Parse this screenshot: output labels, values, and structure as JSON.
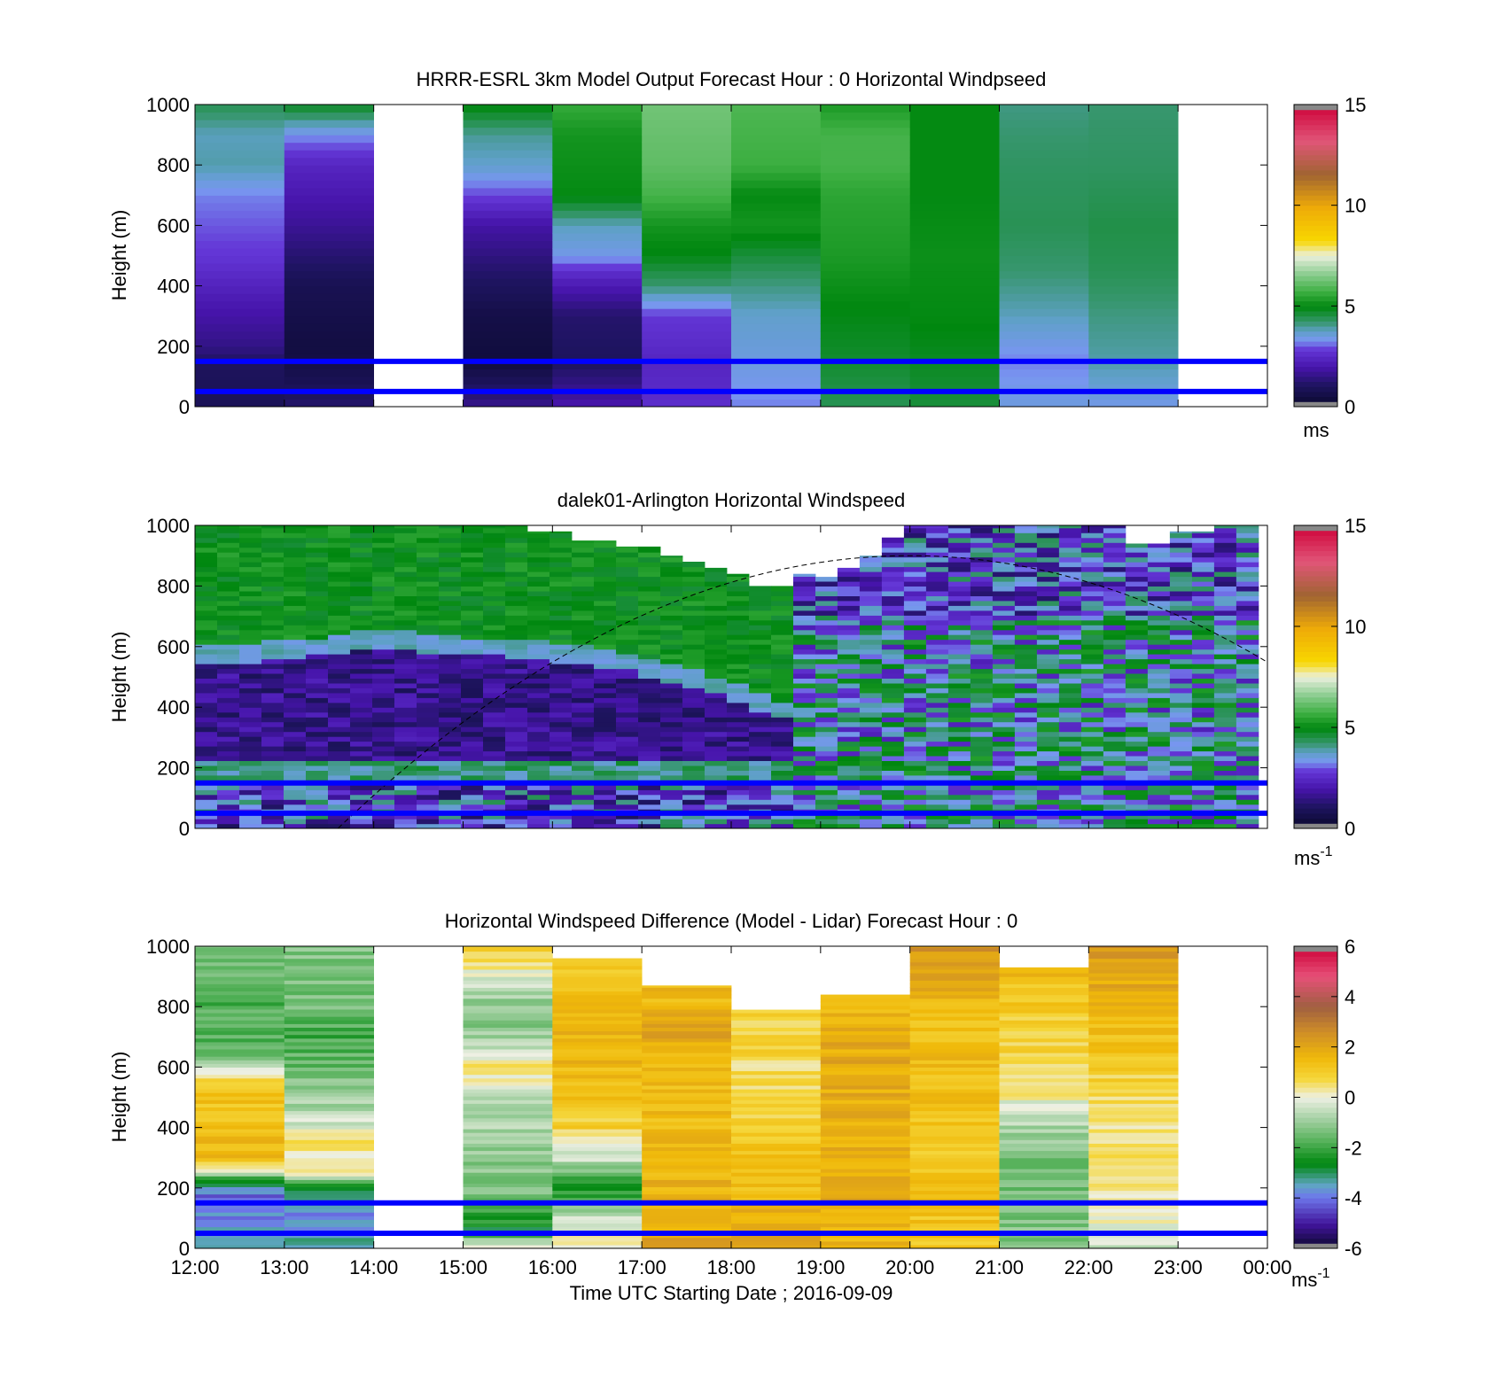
{
  "figure": {
    "xlabel": "Time UTC  Starting Date ; 2016-09-09",
    "xticks": [
      "12:00",
      "13:00",
      "14:00",
      "15:00",
      "16:00",
      "17:00",
      "18:00",
      "19:00",
      "20:00",
      "21:00",
      "22:00",
      "23:00",
      "00:00"
    ]
  },
  "chart_data": [
    {
      "type": "heatmap",
      "title": "HRRR-ESRL 3km Model Output   Forecast Hour : 0 Horizontal Windpseed",
      "ylabel": "Height (m)",
      "xlabel": "",
      "xlim": [
        12,
        24
      ],
      "ylim": [
        0,
        1000
      ],
      "yticks": [
        0,
        200,
        400,
        600,
        800,
        1000
      ],
      "colorbar": {
        "min": 0,
        "max": 15,
        "ticks": [
          0,
          5,
          10,
          15
        ],
        "unit": "ms"
      },
      "reference_lines_m": [
        50,
        150
      ],
      "columns": [
        {
          "start": 12,
          "end": 13,
          "profile": [
            [
              0,
              0.9
            ],
            [
              140,
              1.0
            ],
            [
              200,
              1.5
            ],
            [
              350,
              2.1
            ],
            [
              500,
              2.8
            ],
            [
              700,
              3.2
            ],
            [
              800,
              3.9
            ],
            [
              900,
              3.8
            ],
            [
              1000,
              4.4
            ]
          ]
        },
        {
          "start": 13,
          "end": 14,
          "profile": [
            [
              0,
              1.2
            ],
            [
              140,
              0.6
            ],
            [
              200,
              0.5
            ],
            [
              400,
              0.8
            ],
            [
              600,
              1.7
            ],
            [
              800,
              2.4
            ],
            [
              900,
              3.3
            ],
            [
              1000,
              4.8
            ]
          ]
        },
        {
          "start": 15,
          "end": 16,
          "profile": [
            [
              0,
              1.6
            ],
            [
              150,
              0.4
            ],
            [
              300,
              0.6
            ],
            [
              450,
              1.2
            ],
            [
              600,
              1.9
            ],
            [
              700,
              2.9
            ],
            [
              800,
              3.7
            ],
            [
              900,
              4.0
            ],
            [
              1000,
              5.0
            ]
          ]
        },
        {
          "start": 16,
          "end": 17,
          "profile": [
            [
              0,
              2.0
            ],
            [
              150,
              1.0
            ],
            [
              300,
              1.2
            ],
            [
              430,
              2.4
            ],
            [
              500,
              3.4
            ],
            [
              600,
              3.8
            ],
            [
              700,
              5.0
            ],
            [
              800,
              5.1
            ],
            [
              900,
              5.2
            ],
            [
              1000,
              5.6
            ]
          ]
        },
        {
          "start": 17,
          "end": 18,
          "profile": [
            [
              0,
              2.6
            ],
            [
              150,
              2.4
            ],
            [
              300,
              2.8
            ],
            [
              400,
              4.2
            ],
            [
              500,
              4.9
            ],
            [
              600,
              5.2
            ],
            [
              700,
              5.8
            ],
            [
              800,
              6.1
            ],
            [
              900,
              6.2
            ],
            [
              1000,
              6.3
            ]
          ]
        },
        {
          "start": 18,
          "end": 19,
          "profile": [
            [
              0,
              3.2
            ],
            [
              150,
              3.5
            ],
            [
              300,
              3.7
            ],
            [
              400,
              4.1
            ],
            [
              500,
              4.6
            ],
            [
              600,
              5.2
            ],
            [
              700,
              5.0
            ],
            [
              800,
              5.7
            ],
            [
              1000,
              5.9
            ]
          ]
        },
        {
          "start": 19,
          "end": 20,
          "profile": [
            [
              0,
              4.4
            ],
            [
              150,
              4.7
            ],
            [
              300,
              4.9
            ],
            [
              500,
              5.3
            ],
            [
              700,
              5.5
            ],
            [
              800,
              5.8
            ],
            [
              900,
              5.8
            ],
            [
              1000,
              5.3
            ]
          ]
        },
        {
          "start": 20,
          "end": 21,
          "profile": [
            [
              0,
              4.6
            ],
            [
              150,
              4.8
            ],
            [
              300,
              5.0
            ],
            [
              500,
              5.1
            ],
            [
              700,
              5.0
            ],
            [
              900,
              5.0
            ],
            [
              1000,
              5.0
            ]
          ]
        },
        {
          "start": 21,
          "end": 22,
          "profile": [
            [
              0,
              3.5
            ],
            [
              150,
              3.2
            ],
            [
              300,
              3.8
            ],
            [
              450,
              4.2
            ],
            [
              600,
              4.4
            ],
            [
              800,
              4.3
            ],
            [
              1000,
              4.1
            ]
          ]
        },
        {
          "start": 22,
          "end": 23,
          "profile": [
            [
              0,
              3.4
            ],
            [
              150,
              3.9
            ],
            [
              300,
              4.1
            ],
            [
              450,
              4.4
            ],
            [
              600,
              4.5
            ],
            [
              800,
              4.3
            ],
            [
              1000,
              4.2
            ]
          ]
        }
      ]
    },
    {
      "type": "heatmap",
      "title": "dalek01-Arlington  Horizontal Windspeed",
      "ylabel": "Height (m)",
      "xlabel": "",
      "xlim": [
        12,
        24
      ],
      "ylim": [
        0,
        1000
      ],
      "yticks": [
        0,
        200,
        400,
        600,
        800,
        1000
      ],
      "colorbar": {
        "min": 0,
        "max": 15,
        "ticks": [
          0,
          5,
          10,
          15
        ],
        "unit": "ms-1"
      },
      "reference_lines_m": [
        50,
        150
      ],
      "column_width_h": 0.25,
      "x_start": 12,
      "x_end": 23.9,
      "top_heights_m": [
        1000,
        1000,
        1000,
        1000,
        1000,
        1000,
        1000,
        1000,
        1000,
        1000,
        1000,
        1000,
        1000,
        1000,
        1000,
        980,
        980,
        950,
        950,
        930,
        930,
        900,
        880,
        860,
        840,
        800,
        800,
        840,
        830,
        860,
        900,
        960,
        1000,
        1000,
        1000,
        1000,
        1000,
        1000,
        1000,
        1000,
        1000,
        1000,
        940,
        940,
        980,
        980,
        1000,
        1000
      ],
      "boundary_layer_m": [
        600,
        600,
        610,
        620,
        620,
        630,
        640,
        650,
        650,
        650,
        640,
        640,
        630,
        630,
        620,
        620,
        610,
        600,
        590,
        580,
        560,
        540,
        520,
        500,
        480,
        450,
        420,
        380,
        330,
        290,
        250,
        220,
        200,
        200,
        200,
        200,
        200,
        200,
        200,
        200,
        200,
        200,
        200,
        200,
        200,
        200,
        200,
        200
      ],
      "sunrise_curve": {
        "peak_time": 20,
        "peak_height_m": 900,
        "zero_time": 13.6
      }
    },
    {
      "type": "heatmap",
      "title": "Horizontal Windspeed Difference (Model - Lidar) Forecast Hour : 0",
      "ylabel": "Height (m)",
      "xlabel": "Time UTC  Starting Date ; 2016-09-09",
      "xlim": [
        12,
        24
      ],
      "ylim": [
        0,
        1000
      ],
      "yticks": [
        0,
        200,
        400,
        600,
        800,
        1000
      ],
      "colorbar": {
        "min": -6,
        "max": 6,
        "ticks": [
          -6,
          -4,
          -2,
          0,
          2,
          4,
          6
        ],
        "unit": "ms-1"
      },
      "reference_lines_m": [
        50,
        150
      ],
      "columns": [
        {
          "start": 12,
          "end": 13,
          "top": 1000,
          "profile": [
            [
              0,
              -3.2
            ],
            [
              80,
              -3.8
            ],
            [
              170,
              -4.2
            ],
            [
              230,
              -2.5
            ],
            [
              260,
              0.2
            ],
            [
              300,
              1.6
            ],
            [
              450,
              1.3
            ],
            [
              550,
              1.1
            ],
            [
              600,
              -0.5
            ],
            [
              650,
              -1.6
            ],
            [
              800,
              -1.8
            ],
            [
              1000,
              -1.5
            ]
          ]
        },
        {
          "start": 13,
          "end": 14,
          "top": 1000,
          "profile": [
            [
              0,
              -3.3
            ],
            [
              100,
              -3.9
            ],
            [
              160,
              -2.9
            ],
            [
              200,
              -2.7
            ],
            [
              250,
              0.0
            ],
            [
              350,
              0.6
            ],
            [
              450,
              -0.7
            ],
            [
              600,
              -1.5
            ],
            [
              700,
              -1.9
            ],
            [
              800,
              -1.4
            ],
            [
              1000,
              -1.2
            ]
          ]
        },
        {
          "start": 15,
          "end": 16,
          "top": 1000,
          "profile": [
            [
              0,
              0.8
            ],
            [
              60,
              -2.8
            ],
            [
              180,
              -1.3
            ],
            [
              300,
              -1.2
            ],
            [
              400,
              -0.8
            ],
            [
              500,
              -0.5
            ],
            [
              600,
              0.4
            ],
            [
              700,
              -1.0
            ],
            [
              800,
              -1.2
            ],
            [
              900,
              -0.2
            ],
            [
              1000,
              1.1
            ]
          ]
        },
        {
          "start": 16,
          "end": 17,
          "top": 960,
          "profile": [
            [
              0,
              0.4
            ],
            [
              100,
              -0.4
            ],
            [
              200,
              -2.6
            ],
            [
              300,
              -0.4
            ],
            [
              400,
              0.9
            ],
            [
              550,
              1.5
            ],
            [
              700,
              1.6
            ],
            [
              850,
              1.3
            ],
            [
              960,
              1.2
            ]
          ]
        },
        {
          "start": 17,
          "end": 18,
          "top": 870,
          "profile": [
            [
              0,
              2.1
            ],
            [
              100,
              1.7
            ],
            [
              300,
              1.6
            ],
            [
              500,
              1.4
            ],
            [
              600,
              1.5
            ],
            [
              700,
              2.0
            ],
            [
              800,
              1.6
            ],
            [
              870,
              1.6
            ]
          ]
        },
        {
          "start": 18,
          "end": 19,
          "top": 790,
          "profile": [
            [
              0,
              2.2
            ],
            [
              100,
              1.8
            ],
            [
              200,
              1.4
            ],
            [
              400,
              1.0
            ],
            [
              500,
              0.8
            ],
            [
              600,
              0.6
            ],
            [
              700,
              0.9
            ],
            [
              790,
              0.7
            ]
          ]
        },
        {
          "start": 19,
          "end": 20,
          "top": 840,
          "profile": [
            [
              0,
              1.6
            ],
            [
              200,
              1.8
            ],
            [
              400,
              1.7
            ],
            [
              600,
              1.9
            ],
            [
              800,
              1.7
            ],
            [
              840,
              1.6
            ]
          ]
        },
        {
          "start": 20,
          "end": 21,
          "top": 1000,
          "profile": [
            [
              0,
              1.2
            ],
            [
              200,
              1.2
            ],
            [
              400,
              1.2
            ],
            [
              600,
              1.4
            ],
            [
              800,
              1.4
            ],
            [
              950,
              2.2
            ],
            [
              1000,
              2.4
            ]
          ]
        },
        {
          "start": 21,
          "end": 22,
          "top": 930,
          "profile": [
            [
              0,
              -1.2
            ],
            [
              150,
              -1.4
            ],
            [
              300,
              -1.3
            ],
            [
              400,
              -0.8
            ],
            [
              500,
              0.1
            ],
            [
              600,
              0.6
            ],
            [
              700,
              0.9
            ],
            [
              800,
              1.0
            ],
            [
              930,
              1.5
            ]
          ]
        },
        {
          "start": 22,
          "end": 23,
          "top": 1000,
          "profile": [
            [
              0,
              -0.5
            ],
            [
              150,
              0.2
            ],
            [
              250,
              0.3
            ],
            [
              350,
              0.5
            ],
            [
              500,
              0.6
            ],
            [
              700,
              1.3
            ],
            [
              850,
              1.8
            ],
            [
              1000,
              2.4
            ]
          ]
        }
      ]
    }
  ]
}
